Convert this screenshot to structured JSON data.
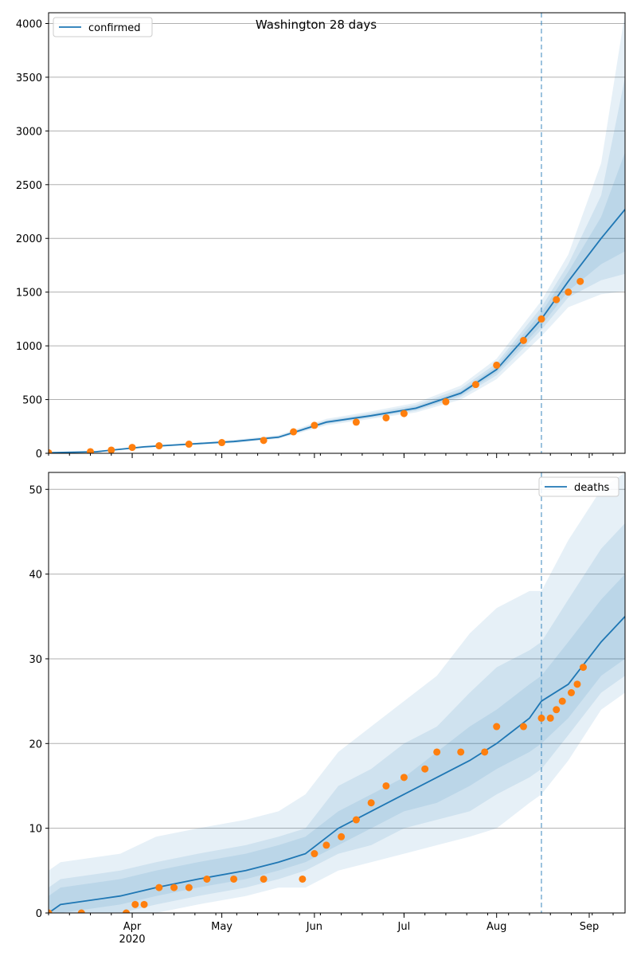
{
  "figure": {
    "title": "Washington 28 days"
  },
  "colors": {
    "model_line": "#1f77b4",
    "observed_points": "#ff7f0e",
    "band": "#1f77b4",
    "grid": "#b0b0b0",
    "forecast_start_line": "#1f77b4"
  },
  "chart_data": [
    {
      "name": "confirmed-panel",
      "type": "line",
      "legend": {
        "label": "confirmed",
        "position": "top-left"
      },
      "xlim": [
        "2020-03-04",
        "2020-09-13"
      ],
      "ylim": [
        0,
        4100
      ],
      "y_ticks": [
        0,
        500,
        1000,
        1500,
        2000,
        2500,
        3000,
        3500,
        4000
      ],
      "x_ticks": [
        {
          "date": "2020-04-01",
          "label": "Apr",
          "sublabel": "2020"
        },
        {
          "date": "2020-05-01",
          "label": "May",
          "sublabel": ""
        },
        {
          "date": "2020-06-01",
          "label": "Jun",
          "sublabel": ""
        },
        {
          "date": "2020-07-01",
          "label": "Jul",
          "sublabel": ""
        },
        {
          "date": "2020-08-01",
          "label": "Aug",
          "sublabel": ""
        },
        {
          "date": "2020-09-01",
          "label": "Sep",
          "sublabel": ""
        }
      ],
      "grid": "y",
      "forecast_start": "2020-08-16",
      "model": {
        "x": [
          "2020-03-04",
          "2020-03-20",
          "2020-04-05",
          "2020-04-20",
          "2020-05-05",
          "2020-05-20",
          "2020-06-05",
          "2020-06-20",
          "2020-07-05",
          "2020-07-20",
          "2020-08-01",
          "2020-08-16",
          "2020-08-25",
          "2020-09-05",
          "2020-09-13"
        ],
        "y": [
          5,
          15,
          60,
          85,
          110,
          150,
          290,
          350,
          420,
          560,
          780,
          1250,
          1600,
          2000,
          2270
        ],
        "bands": [
          {
            "lower": [
              0,
              10,
              50,
              75,
              95,
              135,
              260,
              320,
              380,
              500,
              690,
              1090,
              1360,
              1480,
              1510
            ],
            "upper": [
              12,
              22,
              70,
              95,
              125,
              170,
              320,
              390,
              470,
              630,
              880,
              1420,
              1850,
              2700,
              4100
            ]
          },
          {
            "lower": [
              2,
              12,
              54,
              79,
              101,
              140,
              272,
              332,
              396,
              524,
              726,
              1150,
              1450,
              1610,
              1670
            ],
            "upper": [
              9,
              19,
              66,
              91,
              119,
              162,
              308,
              374,
              450,
              602,
              840,
              1360,
              1760,
              2400,
              3500
            ]
          },
          {
            "lower": [
              3,
              13,
              57,
              82,
              105,
              145,
              280,
              340,
              405,
              540,
              750,
              1190,
              1510,
              1760,
              1880
            ],
            "upper": [
              7,
              17,
              63,
              88,
              115,
              155,
              300,
              360,
              435,
              580,
              810,
              1310,
              1690,
              2200,
              2800
            ]
          }
        ]
      },
      "observed": {
        "x": [
          "2020-03-04",
          "2020-03-18",
          "2020-03-25",
          "2020-04-01",
          "2020-04-10",
          "2020-04-20",
          "2020-05-01",
          "2020-05-15",
          "2020-05-25",
          "2020-06-01",
          "2020-06-15",
          "2020-06-25",
          "2020-07-01",
          "2020-07-15",
          "2020-07-25",
          "2020-08-01",
          "2020-08-10",
          "2020-08-16",
          "2020-08-21",
          "2020-08-25",
          "2020-08-29"
        ],
        "y": [
          5,
          15,
          30,
          55,
          70,
          85,
          100,
          120,
          200,
          260,
          290,
          330,
          370,
          480,
          640,
          820,
          1050,
          1250,
          1430,
          1500,
          1600
        ]
      }
    },
    {
      "name": "deaths-panel",
      "type": "line",
      "legend": {
        "label": "deaths",
        "position": "top-right"
      },
      "xlim": [
        "2020-03-04",
        "2020-09-13"
      ],
      "ylim": [
        0,
        52
      ],
      "y_ticks": [
        0,
        10,
        20,
        30,
        40,
        50
      ],
      "x_ticks": [
        {
          "date": "2020-04-01",
          "label": "Apr",
          "sublabel": "2020"
        },
        {
          "date": "2020-05-01",
          "label": "May",
          "sublabel": ""
        },
        {
          "date": "2020-06-01",
          "label": "Jun",
          "sublabel": ""
        },
        {
          "date": "2020-07-01",
          "label": "Jul",
          "sublabel": ""
        },
        {
          "date": "2020-08-01",
          "label": "Aug",
          "sublabel": ""
        },
        {
          "date": "2020-09-01",
          "label": "Sep",
          "sublabel": ""
        }
      ],
      "grid": "y",
      "forecast_start": "2020-08-16",
      "model": {
        "x": [
          "2020-03-04",
          "2020-03-08",
          "2020-03-28",
          "2020-04-09",
          "2020-04-23",
          "2020-05-09",
          "2020-05-20",
          "2020-05-29",
          "2020-06-09",
          "2020-06-20",
          "2020-07-01",
          "2020-07-12",
          "2020-07-23",
          "2020-08-01",
          "2020-08-12",
          "2020-08-16",
          "2020-08-25",
          "2020-09-05",
          "2020-09-13"
        ],
        "y": [
          0,
          1,
          2,
          3,
          4,
          5,
          6,
          7,
          10,
          12,
          14,
          16,
          18,
          20,
          23,
          25,
          27,
          32,
          35
        ],
        "bands": [
          {
            "lower": [
              0,
              0,
              0,
              0,
              1,
              2,
              3,
              3,
              5,
              6,
              7,
              8,
              9,
              10,
              13,
              14,
              18,
              24,
              26
            ],
            "upper": [
              5,
              6,
              7,
              9,
              10,
              11,
              12,
              14,
              19,
              22,
              25,
              28,
              33,
              36,
              38,
              38,
              44,
              50,
              52
            ]
          },
          {
            "lower": [
              0,
              0,
              0,
              1,
              2,
              3,
              4,
              5,
              7,
              8,
              10,
              11,
              12,
              14,
              16,
              17,
              21,
              26,
              28
            ],
            "upper": [
              3,
              4,
              5,
              6,
              7,
              8,
              9,
              10,
              15,
              17,
              20,
              22,
              26,
              29,
              31,
              32,
              37,
              43,
              46
            ]
          },
          {
            "lower": [
              0,
              0,
              1,
              2,
              3,
              4,
              5,
              6,
              8,
              10,
              12,
              13,
              15,
              17,
              19,
              20,
              23,
              28,
              30
            ],
            "upper": [
              2,
              3,
              4,
              5,
              6,
              7,
              8,
              9,
              12,
              14,
              16,
              19,
              22,
              24,
              27,
              28,
              32,
              37,
              40
            ]
          }
        ]
      },
      "observed": {
        "x": [
          "2020-03-04",
          "2020-03-15",
          "2020-03-30",
          "2020-04-02",
          "2020-04-05",
          "2020-04-10",
          "2020-04-15",
          "2020-04-20",
          "2020-04-26",
          "2020-05-05",
          "2020-05-15",
          "2020-05-28",
          "2020-06-01",
          "2020-06-05",
          "2020-06-10",
          "2020-06-15",
          "2020-06-20",
          "2020-06-25",
          "2020-07-01",
          "2020-07-08",
          "2020-07-12",
          "2020-07-20",
          "2020-07-28",
          "2020-08-01",
          "2020-08-10",
          "2020-08-16",
          "2020-08-19",
          "2020-08-21",
          "2020-08-23",
          "2020-08-26",
          "2020-08-28",
          "2020-08-30"
        ],
        "y": [
          0,
          0,
          0,
          1,
          1,
          3,
          3,
          3,
          4,
          4,
          4,
          4,
          7,
          8,
          9,
          11,
          13,
          15,
          16,
          17,
          19,
          19,
          19,
          22,
          22,
          23,
          23,
          24,
          25,
          26,
          27,
          29
        ]
      }
    }
  ]
}
